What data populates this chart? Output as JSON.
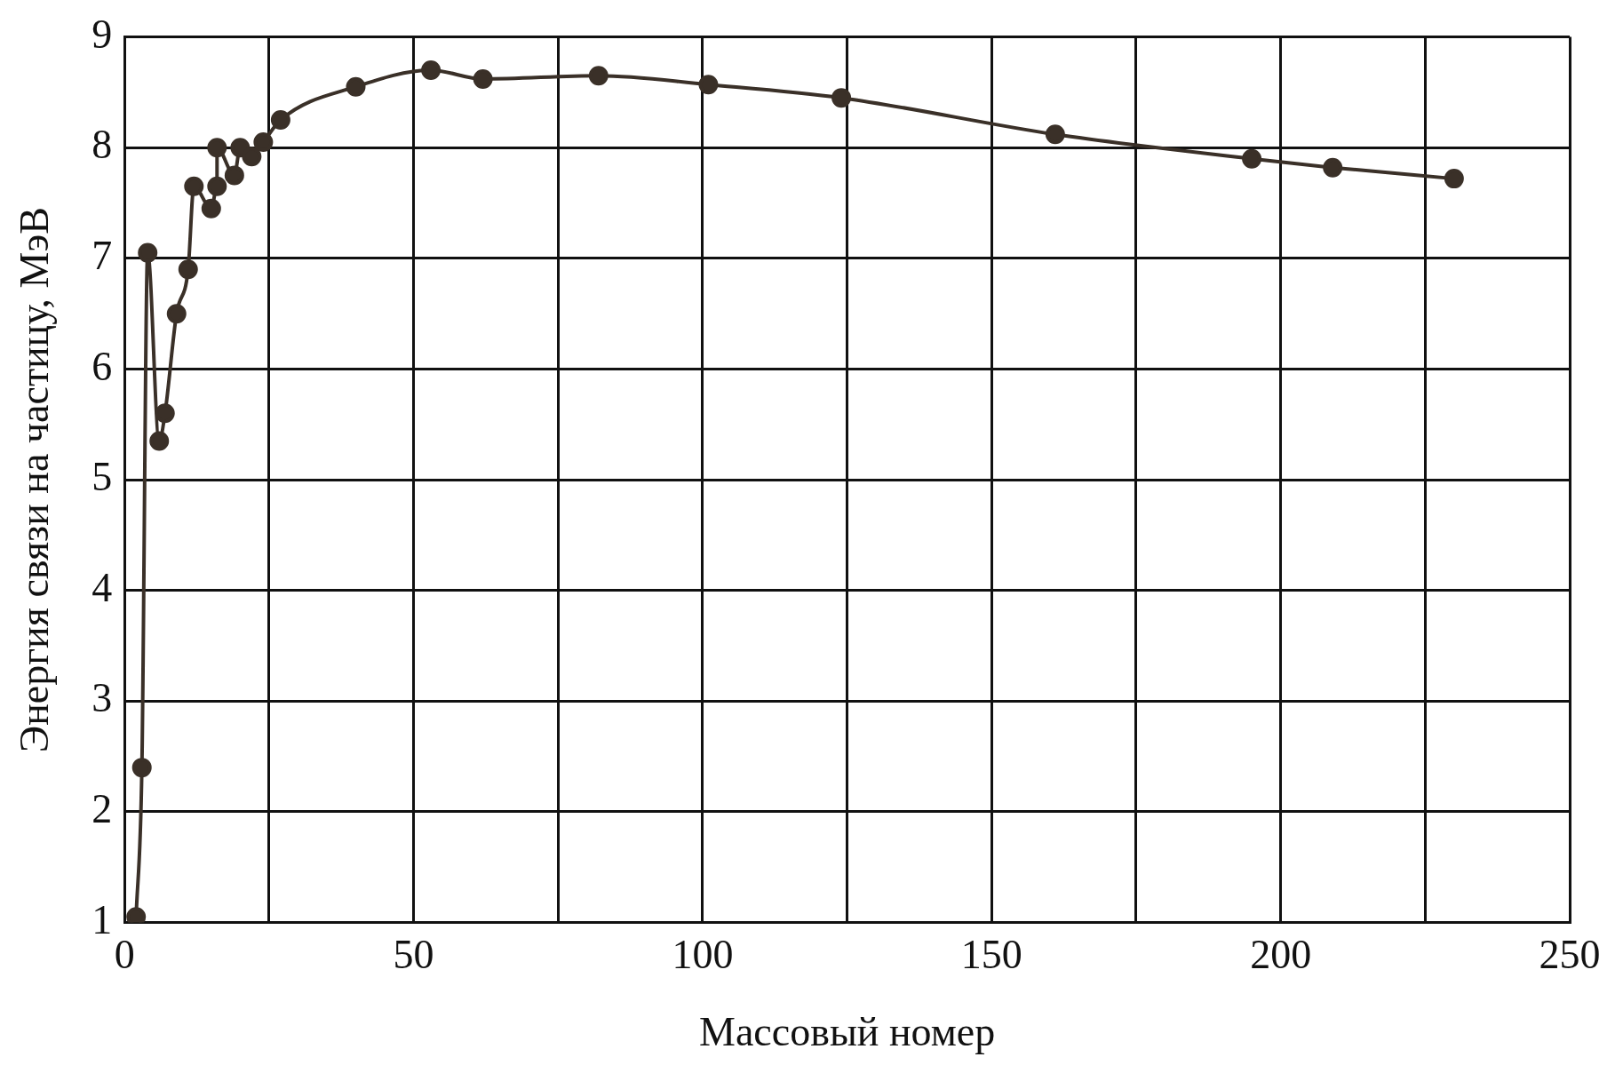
{
  "chart_data": {
    "type": "line",
    "xlabel": "Массовый номер",
    "ylabel": "Энергия связи на частицу, МэВ",
    "x": [
      2,
      3,
      4,
      6,
      7,
      9,
      11,
      12,
      15,
      16,
      16,
      19,
      20,
      22,
      24,
      27,
      40,
      53,
      62,
      82,
      101,
      124,
      161,
      195,
      209,
      230
    ],
    "values": [
      1.05,
      2.4,
      7.05,
      5.35,
      5.6,
      6.5,
      6.9,
      7.65,
      7.45,
      7.65,
      8.0,
      7.75,
      8.0,
      7.92,
      8.05,
      8.25,
      8.55,
      8.7,
      8.62,
      8.65,
      8.57,
      8.45,
      8.12,
      7.9,
      7.82,
      7.72
    ],
    "color": "#3a3028",
    "marker": "circle",
    "line_style": "solid",
    "xlim": [
      0,
      250
    ],
    "xticks": [
      0,
      {
        "value": 25,
        "label": null
      },
      50,
      {
        "value": 75,
        "label": null
      },
      100,
      {
        "value": 125,
        "label": null
      },
      150,
      {
        "value": 175,
        "label": null
      },
      200,
      {
        "value": 225,
        "label": null
      },
      250
    ],
    "ylim": [
      1,
      9
    ],
    "yticks": [
      1,
      2,
      3,
      4,
      5,
      6,
      7,
      8,
      9
    ],
    "grid": true
  }
}
